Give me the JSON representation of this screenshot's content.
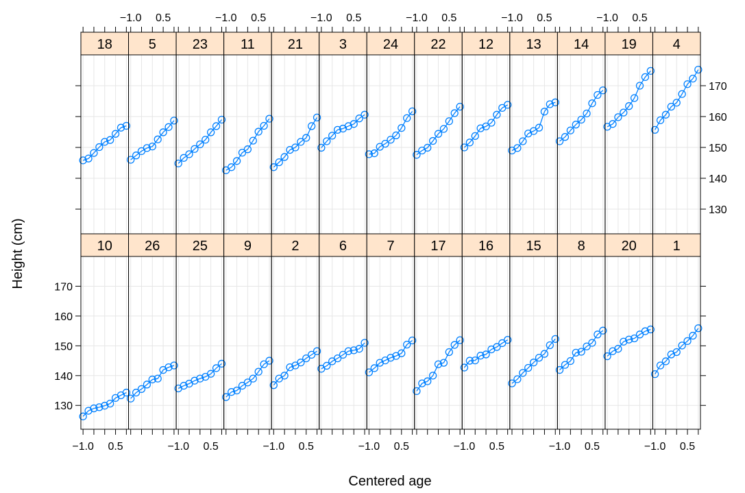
{
  "chart_data": {
    "type": "line",
    "xlabel": "Centered age",
    "ylabel": "Height (cm)",
    "xlim": [
      -1.1,
      1.1
    ],
    "ylim": [
      122,
      180
    ],
    "x_ticks": [
      -1.0,
      -0.5,
      0.0,
      0.5,
      1.0
    ],
    "x_tick_labels": [
      "−1.0",
      "",
      "",
      "0.5",
      ""
    ],
    "y_ticks": [
      130,
      140,
      150,
      160,
      170
    ],
    "y_tick_labels": [
      "130",
      "140",
      "150",
      "160",
      "170"
    ],
    "layout": {
      "columns": 13,
      "rows": 2
    },
    "grid": true,
    "marker": "open-circle",
    "line_color": "#0080ff",
    "strip_color": "#ffe5cc",
    "x": [
      -1.0,
      -0.75,
      -0.5,
      -0.25,
      0.0,
      0.25,
      0.5,
      0.75,
      1.0
    ],
    "panels": [
      {
        "name": "18",
        "row": "top",
        "values": [
          145.8,
          146.4,
          148.2,
          150.1,
          151.8,
          152.4,
          154.4,
          156.4,
          157.0
        ]
      },
      {
        "name": "5",
        "row": "top",
        "values": [
          146.0,
          147.4,
          148.8,
          149.8,
          150.3,
          152.6,
          154.9,
          156.6,
          158.7
        ]
      },
      {
        "name": "23",
        "row": "top",
        "values": [
          144.8,
          146.6,
          147.8,
          149.5,
          151.0,
          152.5,
          154.9,
          156.9,
          159.0
        ]
      },
      {
        "name": "11",
        "row": "top",
        "values": [
          142.6,
          143.6,
          145.6,
          148.3,
          149.4,
          152.2,
          155.1,
          157.0,
          159.3
        ]
      },
      {
        "name": "21",
        "row": "top",
        "values": [
          143.6,
          145.2,
          146.9,
          149.2,
          150.0,
          151.8,
          153.1,
          156.9,
          159.7
        ]
      },
      {
        "name": "3",
        "row": "top",
        "values": [
          149.9,
          152.0,
          153.8,
          155.7,
          156.1,
          156.9,
          157.6,
          159.4,
          160.6
        ]
      },
      {
        "name": "24",
        "row": "top",
        "values": [
          147.8,
          148.1,
          150.2,
          151.2,
          152.5,
          153.9,
          156.3,
          159.5,
          161.7
        ]
      },
      {
        "name": "22",
        "row": "top",
        "values": [
          147.6,
          149.0,
          149.9,
          152.1,
          154.4,
          156.0,
          158.5,
          161.1,
          163.2
        ]
      },
      {
        "name": "12",
        "row": "top",
        "values": [
          150.0,
          151.6,
          153.7,
          156.2,
          156.8,
          158.0,
          160.6,
          162.8,
          163.8
        ]
      },
      {
        "name": "13",
        "row": "top",
        "values": [
          149.0,
          149.8,
          152.0,
          154.5,
          155.3,
          156.4,
          161.6,
          164.0,
          164.6
        ]
      },
      {
        "name": "14",
        "row": "top",
        "values": [
          152.0,
          153.4,
          155.5,
          157.4,
          159.0,
          161.0,
          164.3,
          167.0,
          168.5
        ]
      },
      {
        "name": "19",
        "row": "top",
        "values": [
          156.7,
          157.6,
          159.8,
          161.3,
          163.4,
          166.0,
          170.0,
          172.8,
          174.8
        ]
      },
      {
        "name": "4",
        "row": "top",
        "values": [
          155.7,
          158.8,
          160.6,
          163.2,
          164.5,
          167.3,
          170.5,
          172.3,
          175.2
        ]
      },
      {
        "name": "10",
        "row": "bottom",
        "values": [
          126.3,
          128.2,
          129.0,
          129.4,
          129.9,
          130.6,
          132.5,
          133.4,
          134.3
        ]
      },
      {
        "name": "26",
        "row": "bottom",
        "values": [
          132.3,
          134.3,
          135.5,
          137.0,
          138.7,
          139.0,
          141.9,
          142.8,
          143.4
        ]
      },
      {
        "name": "25",
        "row": "bottom",
        "values": [
          135.7,
          136.6,
          137.3,
          138.3,
          139.0,
          139.6,
          140.6,
          142.5,
          144.0
        ]
      },
      {
        "name": "9",
        "row": "bottom",
        "values": [
          132.8,
          134.5,
          135.0,
          136.6,
          137.7,
          139.0,
          141.3,
          143.8,
          145.0
        ]
      },
      {
        "name": "2",
        "row": "bottom",
        "values": [
          136.8,
          139.0,
          140.0,
          142.8,
          143.4,
          144.4,
          145.8,
          147.0,
          148.2
        ]
      },
      {
        "name": "6",
        "row": "bottom",
        "values": [
          142.3,
          143.3,
          144.8,
          145.8,
          147.0,
          148.2,
          148.5,
          149.0,
          151.0
        ]
      },
      {
        "name": "7",
        "row": "bottom",
        "values": [
          141.1,
          142.5,
          144.3,
          145.1,
          146.0,
          146.6,
          147.5,
          150.4,
          151.8
        ]
      },
      {
        "name": "17",
        "row": "bottom",
        "values": [
          134.8,
          137.4,
          138.1,
          140.0,
          143.8,
          144.3,
          147.9,
          150.3,
          151.9
        ]
      },
      {
        "name": "16",
        "row": "bottom",
        "values": [
          142.7,
          145.0,
          145.1,
          146.7,
          147.1,
          148.8,
          149.6,
          150.9,
          152.0
        ]
      },
      {
        "name": "15",
        "row": "bottom",
        "values": [
          137.4,
          138.8,
          140.9,
          142.6,
          144.4,
          146.0,
          147.3,
          150.2,
          152.3
        ]
      },
      {
        "name": "8",
        "row": "bottom",
        "values": [
          141.9,
          143.6,
          144.9,
          147.7,
          148.0,
          149.8,
          151.0,
          153.8,
          155.1
        ]
      },
      {
        "name": "20",
        "row": "bottom",
        "values": [
          146.5,
          148.2,
          149.0,
          151.4,
          152.1,
          152.5,
          153.8,
          154.9,
          155.5
        ]
      },
      {
        "name": "1",
        "row": "bottom",
        "values": [
          140.5,
          143.4,
          144.8,
          147.1,
          147.9,
          150.1,
          151.6,
          153.4,
          155.9
        ]
      }
    ]
  }
}
